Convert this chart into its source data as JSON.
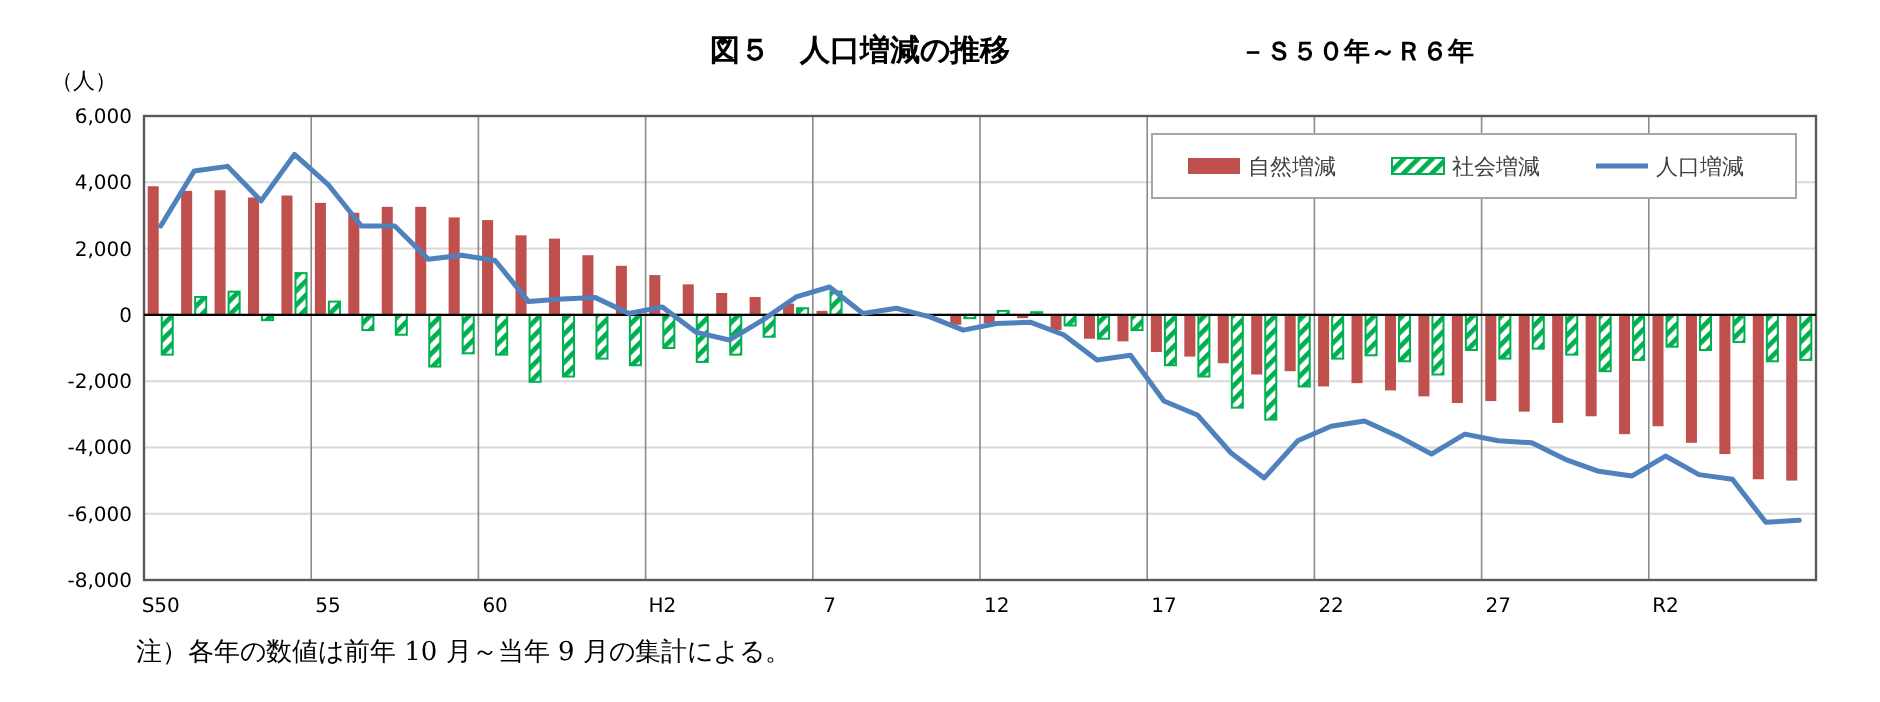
{
  "chart_data": {
    "type": "bar",
    "title": "図５　人口増減の推移",
    "subtitle": "－Ｓ５０年～Ｒ６年",
    "ylabel": "（人）",
    "annotations": [
      "注）各年の数値は前年 10 月～当年 9 月の集計による。"
    ],
    "categories": [
      "S50",
      null,
      null,
      null,
      null,
      "55",
      null,
      null,
      null,
      null,
      "60",
      null,
      null,
      null,
      null,
      "H2",
      null,
      null,
      null,
      null,
      "7",
      null,
      null,
      null,
      null,
      "12",
      null,
      null,
      null,
      null,
      "17",
      null,
      null,
      null,
      null,
      "22",
      null,
      null,
      null,
      null,
      "27",
      null,
      null,
      null,
      null,
      "R2",
      null,
      null,
      null,
      null
    ],
    "series": [
      {
        "name": "自然増減",
        "color": "#c0504d",
        "values": [
          3880,
          3740,
          3760,
          3540,
          3600,
          3380,
          3080,
          3260,
          3260,
          2940,
          2860,
          2400,
          2300,
          1800,
          1480,
          1200,
          920,
          660,
          540,
          340,
          120,
          null,
          null,
          null,
          -300,
          -250,
          -100,
          -460,
          -720,
          -800,
          -1120,
          -1260,
          -1460,
          -1800,
          -1700,
          -2160,
          -2060,
          -2280,
          -2460,
          -2660,
          -2600,
          -2920,
          -3260,
          -3060,
          -3600,
          -3360,
          -3860,
          -4200,
          -4960,
          -5000
        ]
      },
      {
        "name": "社会増減",
        "color": "#00b050",
        "values": [
          -1200,
          540,
          700,
          -160,
          1260,
          400,
          -460,
          -600,
          -1560,
          -1160,
          -1200,
          -2020,
          -1860,
          -1320,
          -1520,
          -1000,
          -1420,
          -1200,
          -660,
          200,
          700,
          null,
          null,
          null,
          -100,
          120,
          80,
          -320,
          -720,
          -460,
          -1520,
          -1860,
          -2800,
          -3160,
          -2160,
          -1320,
          -1220,
          -1400,
          -1800,
          -1060,
          -1320,
          -1020,
          -1200,
          -1700,
          -1360,
          -960,
          -1060,
          -820,
          -1400,
          -1360
        ]
      },
      {
        "name": "人口増減",
        "type": "line",
        "color": "#4f81bd",
        "values": [
          2680,
          4340,
          4480,
          3440,
          4840,
          3940,
          2680,
          2680,
          1680,
          1800,
          1640,
          400,
          480,
          520,
          40,
          240,
          -520,
          -760,
          -160,
          540,
          840,
          40,
          200,
          -60,
          -460,
          -260,
          -220,
          -600,
          -1360,
          -1220,
          -2600,
          -3020,
          -4160,
          -4920,
          -3800,
          -3360,
          -3200,
          -3660,
          -4200,
          -3600,
          -3800,
          -3860,
          -4360,
          -4720,
          -4860,
          -4260,
          -4820,
          -4960,
          -6260,
          -6200
        ]
      }
    ],
    "ylim": [
      -8000,
      6000
    ],
    "yticks": [
      {
        "value": -8000,
        "label": "-8,000"
      },
      {
        "value": -6000,
        "label": "-6,000"
      },
      {
        "value": -4000,
        "label": "-4,000"
      },
      {
        "value": -2000,
        "label": "-2,000"
      },
      0,
      {
        "value": 2000,
        "label": "2,000"
      },
      {
        "value": 4000,
        "label": "4,000"
      },
      {
        "value": 6000,
        "label": "6,000"
      }
    ],
    "grid": true,
    "legend": "top right",
    "marker": "none",
    "line_style": "solid"
  }
}
